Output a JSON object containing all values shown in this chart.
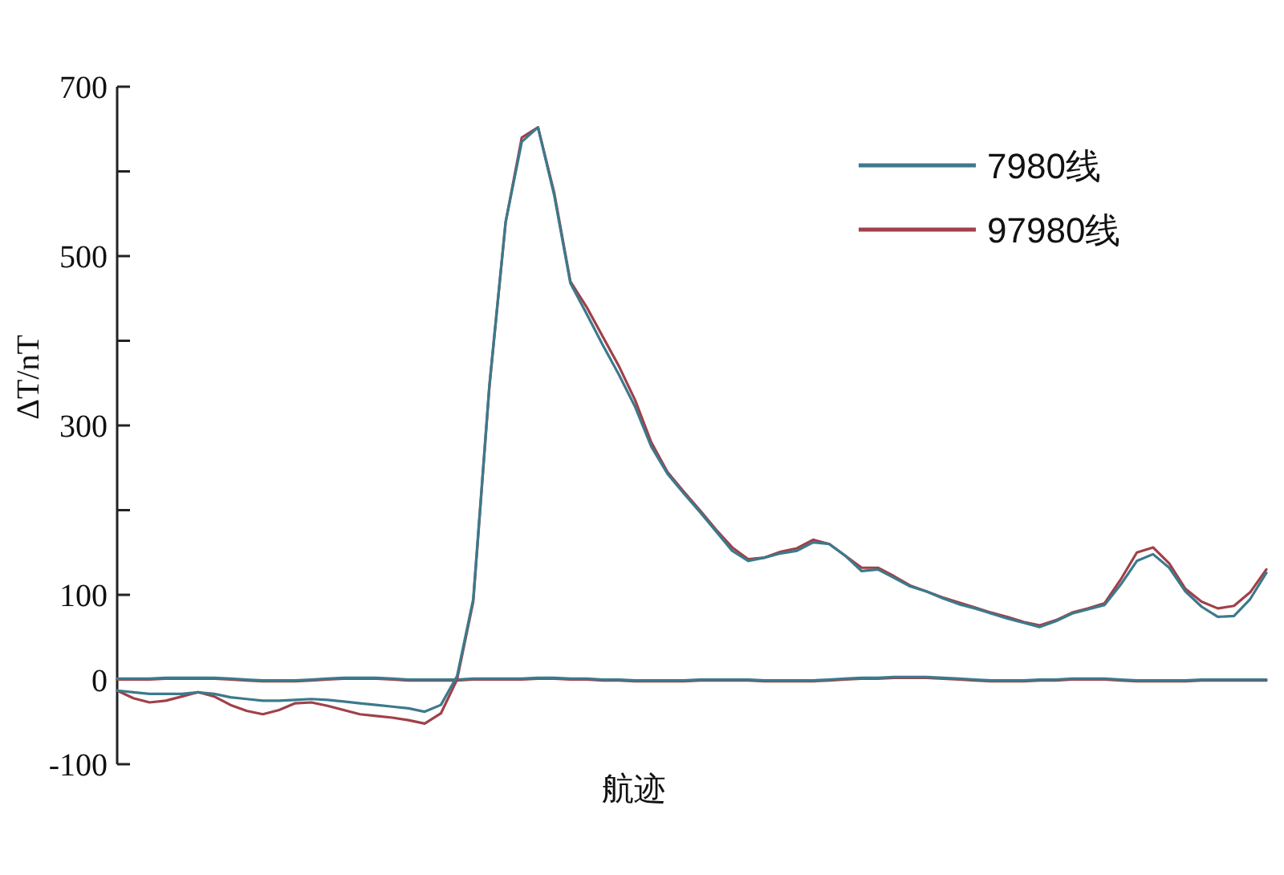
{
  "chart_data": {
    "type": "line",
    "xlabel": "航迹",
    "ylabel": "ΔT/nT",
    "categories": [
      null,
      null,
      null,
      null,
      null,
      null,
      null,
      null,
      null,
      null,
      null,
      null,
      null,
      null,
      null,
      null,
      null,
      null,
      null,
      null,
      null,
      null,
      null,
      null,
      null,
      null,
      null,
      null,
      null,
      null,
      null,
      null,
      null,
      null,
      null,
      null,
      null,
      null,
      null,
      null,
      null,
      null,
      null,
      null,
      null,
      null,
      null,
      null,
      null,
      null,
      null,
      null,
      null,
      null,
      null,
      null,
      null,
      null,
      null,
      null,
      null,
      null,
      null,
      null,
      null,
      null,
      null,
      null,
      null,
      null,
      null,
      null
    ],
    "series": [
      {
        "name": "7980线",
        "color": "#3b7a8c",
        "values": [
          -13,
          -15,
          -17,
          -17,
          -17,
          -15,
          -17,
          -21,
          -23,
          -25,
          -25,
          -24,
          -23,
          -24,
          -26,
          -28,
          -30,
          -32,
          -34,
          -38,
          -30,
          4,
          95,
          348,
          540,
          635,
          652,
          572,
          468,
          432,
          395,
          360,
          322,
          275,
          243,
          220,
          198,
          175,
          152,
          140,
          144,
          149,
          152,
          162,
          160,
          146,
          128,
          130,
          120,
          110,
          104,
          96,
          89,
          84,
          78,
          72,
          67,
          62,
          69,
          78,
          83,
          88,
          112,
          140,
          148,
          132,
          104,
          86,
          74,
          75,
          95,
          126
        ]
      },
      {
        "name": "97980线",
        "color": "#a0404a",
        "values": [
          -13,
          -22,
          -27,
          -25,
          -20,
          -15,
          -20,
          -30,
          -37,
          -41,
          -36,
          -28,
          -27,
          -31,
          -36,
          -41,
          -43,
          -45,
          -48,
          -52,
          -40,
          0,
          92,
          346,
          540,
          640,
          652,
          575,
          470,
          440,
          405,
          370,
          330,
          280,
          245,
          222,
          200,
          177,
          156,
          142,
          144,
          151,
          155,
          165,
          160,
          146,
          132,
          132,
          122,
          111,
          104,
          97,
          91,
          85,
          79,
          74,
          68,
          64,
          70,
          79,
          84,
          90,
          118,
          150,
          156,
          137,
          107,
          92,
          84,
          87,
          103,
          130
        ]
      },
      {
        "color": "#3b7a8c",
        "values": [
          1,
          1,
          1,
          2,
          2,
          2,
          2,
          1,
          0,
          -1,
          -1,
          -1,
          0,
          1,
          2,
          2,
          2,
          1,
          0,
          0,
          0,
          0,
          1,
          1,
          1,
          1,
          2,
          2,
          1,
          1,
          0,
          0,
          -1,
          -1,
          -1,
          -1,
          0,
          0,
          0,
          0,
          -1,
          -1,
          -1,
          -1,
          0,
          1,
          2,
          2,
          3,
          3,
          3,
          2,
          1,
          0,
          -1,
          -1,
          -1,
          0,
          0,
          1,
          1,
          1,
          0,
          -1,
          -1,
          -1,
          -1,
          0,
          0,
          0,
          0,
          0
        ]
      },
      {
        "color": "#a0404a",
        "values": [
          0,
          0,
          0,
          1,
          1,
          1,
          1,
          0,
          -1,
          -2,
          -2,
          -2,
          -1,
          0,
          1,
          1,
          1,
          0,
          -1,
          -1,
          -1,
          -1,
          0,
          0,
          0,
          0,
          1,
          1,
          0,
          0,
          -1,
          -1,
          -2,
          -2,
          -2,
          -2,
          -1,
          -1,
          -1,
          -1,
          -2,
          -2,
          -2,
          -2,
          -1,
          0,
          1,
          1,
          2,
          2,
          2,
          1,
          0,
          -1,
          -2,
          -2,
          -2,
          -1,
          -1,
          0,
          0,
          0,
          -1,
          -2,
          -2,
          -2,
          -2,
          -1,
          -1,
          -1,
          -1,
          -1
        ]
      }
    ],
    "ylim": [
      -100,
      700
    ],
    "yticks": [
      700,
      {
        "value": 600,
        "label": null
      },
      500,
      {
        "value": 400,
        "label": null
      },
      300,
      {
        "value": 200,
        "label": null
      },
      100,
      0,
      -100
    ],
    "tick_labels": "y",
    "legend": "top right"
  }
}
